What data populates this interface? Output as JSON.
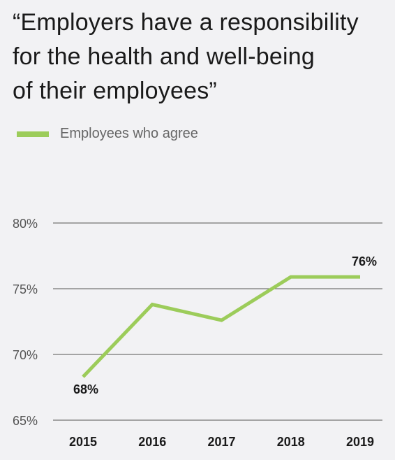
{
  "title_lines": [
    "“Employers have a responsibility",
    "for the health and well-being",
    "of their employees”"
  ],
  "chart_data": {
    "type": "line",
    "title": "“Employers have a responsibility for the health and well-being of their employees”",
    "categories": [
      "2015",
      "2016",
      "2017",
      "2018",
      "2019"
    ],
    "series": [
      {
        "name": "Employees who agree",
        "values": [
          68.3,
          73.8,
          72.6,
          75.9,
          75.9
        ],
        "color": "#9ccc5a"
      }
    ],
    "ylim": [
      65,
      80
    ],
    "y_ticks": [
      80,
      75,
      70,
      65
    ],
    "y_tick_labels": [
      "80%",
      "75%",
      "70%",
      "65%"
    ],
    "data_labels": [
      {
        "index": 0,
        "text": "68%",
        "position": "below"
      },
      {
        "index": 4,
        "text": "76%",
        "position": "above"
      }
    ],
    "grid": true,
    "legend": "top-left",
    "gridline_color": "#555555"
  }
}
